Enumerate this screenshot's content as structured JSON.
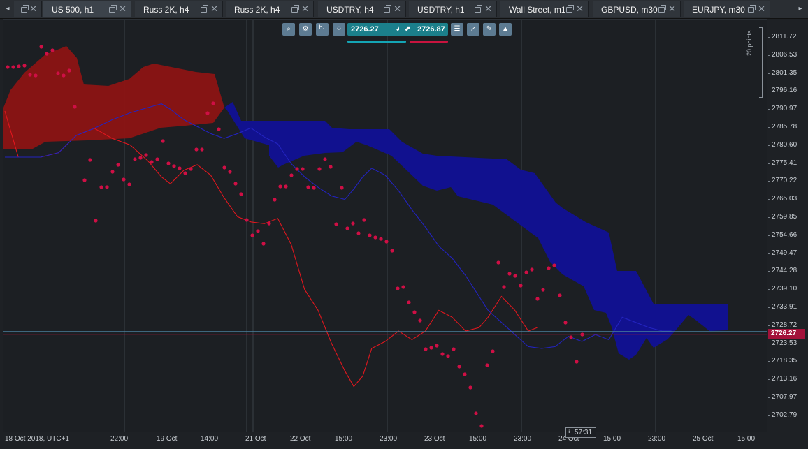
{
  "tabs": [
    {
      "label": "US 500, h1",
      "active": true
    },
    {
      "label": "Russ 2K, h4",
      "active": false
    },
    {
      "label": "Russ 2K, h4",
      "active": false
    },
    {
      "label": "USDTRY, h4",
      "active": false
    },
    {
      "label": "USDTRY, h1",
      "active": false
    },
    {
      "label": "Wall Street, m1",
      "active": false
    },
    {
      "label": "GBPUSD, m30",
      "active": false
    },
    {
      "label": "EURJPY, m30",
      "active": false
    }
  ],
  "tab_nav": {
    "left": "◂",
    "right": "▸"
  },
  "toolbar": {
    "period_label": "h",
    "period_sub": "1",
    "bid_price": "2726.27",
    "ask_price": "2726.87",
    "bid_arrow": "⬈",
    "ask_arrow": "⬈"
  },
  "y_axis": {
    "ticks": [
      "2811.72",
      "2806.53",
      "2801.35",
      "2796.16",
      "2790.97",
      "2785.78",
      "2780.60",
      "2775.41",
      "2770.22",
      "2765.03",
      "2759.85",
      "2754.66",
      "2749.47",
      "2744.28",
      "2739.10",
      "2733.91",
      "2728.72",
      "2723.53",
      "2718.35",
      "2713.16",
      "2707.97",
      "2702.79"
    ],
    "current_price": "2726.27",
    "scale_label": "20 points"
  },
  "x_axis": {
    "labels": [
      "18 Oct 2018, UTC+1",
      "22:00",
      "19 Oct",
      "14:00",
      "21 Oct",
      "22 Oct",
      "15:00",
      "23:00",
      "23 Oct",
      "15:00",
      "23:00",
      "24 Oct",
      "15:00",
      "23:00",
      "25 Oct",
      "15:00"
    ],
    "time_badge": "57:31"
  },
  "colors": {
    "bearish_cloud": "#8c1414",
    "bullish_cloud": "#11118f",
    "tenkan_line": "#e0171e",
    "kijun_line": "#2323c0",
    "chikou_dots": "#cf0f45",
    "bid": "#1b7f8b",
    "ask": "#a3123a",
    "bid_bar": "#14a5b5",
    "ask_bar": "#c8143f"
  },
  "chart_data": {
    "type": "line",
    "title": "",
    "y_range": [
      2697.6,
      2816.9
    ],
    "current_price": 2726.27,
    "series": [
      {
        "values": [
          [
            0,
            2790.5
          ],
          [
            3,
            2777.2
          ],
          [
            8,
            2777.2
          ],
          [
            12,
            2778.5
          ],
          [
            16,
            2783.5
          ],
          [
            20,
            2785.5
          ],
          [
            24,
            2782.6
          ],
          [
            28,
            2780.7
          ],
          [
            32,
            2776.1
          ],
          [
            35,
            2771.5
          ],
          [
            37,
            2769.5
          ],
          [
            40,
            2773.4
          ],
          [
            43,
            2775.0
          ],
          [
            46,
            2772.0
          ],
          [
            49,
            2765.5
          ],
          [
            52,
            2760.0
          ],
          [
            55,
            2758.5
          ],
          [
            58,
            2758.0
          ],
          [
            61,
            2759.5
          ],
          [
            64,
            2752.0
          ],
          [
            67,
            2739.0
          ],
          [
            70,
            2733.0
          ],
          [
            73,
            2723.5
          ],
          [
            76,
            2715.5
          ],
          [
            78,
            2711.0
          ],
          [
            80,
            2714.0
          ],
          [
            82,
            2722.0
          ],
          [
            85,
            2724.0
          ],
          [
            88,
            2727.0
          ],
          [
            91,
            2724.5
          ],
          [
            94,
            2727.0
          ],
          [
            97,
            2733.0
          ],
          [
            100,
            2731.0
          ],
          [
            103,
            2727.0
          ],
          [
            106,
            2728.0
          ],
          [
            108,
            2731.0
          ],
          [
            111,
            2737.0
          ],
          [
            114,
            2733.0
          ],
          [
            117,
            2727.0
          ],
          [
            119,
            2728.0
          ]
        ]
      },
      {
        "values": [
          [
            0,
            2777.2
          ],
          [
            3,
            2777.2
          ],
          [
            8,
            2777.2
          ],
          [
            12,
            2778.5
          ],
          [
            16,
            2783.5
          ],
          [
            20,
            2785.5
          ],
          [
            24,
            2788.0
          ],
          [
            28,
            2790.0
          ],
          [
            32,
            2791.5
          ],
          [
            35,
            2792.6
          ],
          [
            37,
            2791.0
          ],
          [
            40,
            2788.0
          ],
          [
            43,
            2786.0
          ],
          [
            46,
            2784.0
          ],
          [
            49,
            2782.6
          ],
          [
            52,
            2784.0
          ],
          [
            55,
            2785.6
          ],
          [
            58,
            2783.0
          ],
          [
            61,
            2781.0
          ],
          [
            64,
            2775.3
          ],
          [
            67,
            2771.5
          ],
          [
            70,
            2768.5
          ],
          [
            73,
            2766.0
          ],
          [
            76,
            2765.0
          ],
          [
            78,
            2768.0
          ],
          [
            80,
            2771.5
          ],
          [
            82,
            2774.0
          ],
          [
            85,
            2772.0
          ],
          [
            88,
            2767.5
          ],
          [
            91,
            2762.0
          ],
          [
            94,
            2757.0
          ],
          [
            97,
            2751.5
          ],
          [
            100,
            2748.0
          ],
          [
            103,
            2743.0
          ],
          [
            106,
            2737.0
          ],
          [
            108,
            2733.0
          ],
          [
            111,
            2729.5
          ],
          [
            114,
            2726.0
          ],
          [
            117,
            2722.5
          ],
          [
            120,
            2722.0
          ],
          [
            123,
            2722.5
          ],
          [
            126,
            2725.5
          ],
          [
            129,
            2724.0
          ],
          [
            132,
            2726.0
          ],
          [
            135,
            2724.5
          ],
          [
            138,
            2731.0
          ],
          [
            141,
            2729.5
          ],
          [
            144,
            2728.0
          ],
          [
            147,
            2727.0
          ],
          [
            149,
            2727.0
          ]
        ]
      }
    ]
  }
}
